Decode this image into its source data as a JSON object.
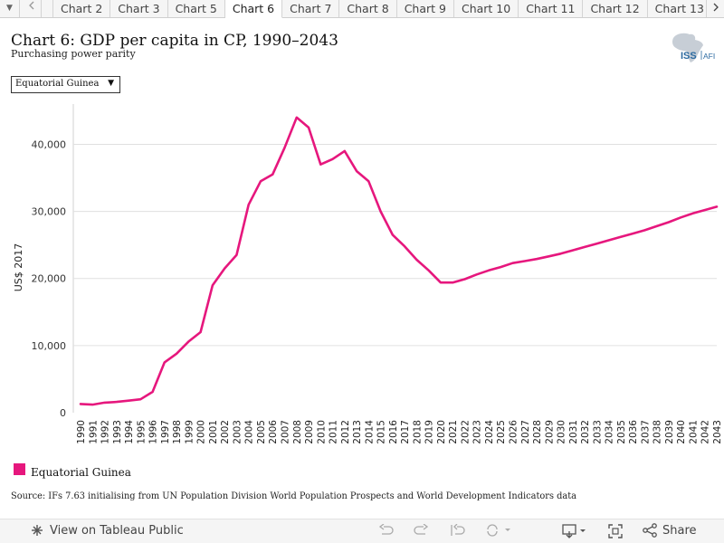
{
  "tabs": [
    "Chart 2",
    "Chart 3",
    "Chart 5",
    "Chart 6",
    "Chart 7",
    "Chart 8",
    "Chart 9",
    "Chart 10",
    "Chart 11",
    "Chart 12",
    "Chart 13"
  ],
  "active_tab": "Chart 6",
  "title": "Chart 6: GDP per capita in CP, 1990–2043",
  "subtitle": "Purchasing power parity",
  "logo": {
    "text_left": "ISS",
    "text_right": "AFI"
  },
  "country_select": {
    "value": "Equatorial Guinea"
  },
  "legend_label": "Equatorial Guinea",
  "source": "Source: IFs 7.63 initialising from UN Population Division World Population Prospects and World Development Indicators data",
  "footer": {
    "view_label": "View on Tableau Public",
    "share_label": "Share"
  },
  "colors": {
    "series": "#e6177d",
    "grid": "#e0e0e0",
    "tabbar": "#f5f5f5"
  },
  "icons": [
    "menu-arrow-icon",
    "back-arrow-icon",
    "next-arrow-icon",
    "tableau-icon",
    "undo-icon",
    "redo-icon",
    "revert-icon",
    "refresh-icon",
    "download-icon",
    "fullscreen-icon",
    "share-icon"
  ],
  "chart_data": {
    "type": "line",
    "title": "Chart 6: GDP per capita in CP, 1990–2043",
    "subtitle": "Purchasing power parity",
    "xlabel": "",
    "ylabel": "US$ 2017",
    "ylim": [
      0,
      46000
    ],
    "yticks": [
      0,
      10000,
      20000,
      30000,
      40000
    ],
    "ytick_labels": [
      "0",
      "10,000",
      "20,000",
      "30,000",
      "40,000"
    ],
    "grid": "horizontal",
    "legend_position": "bottom-left",
    "x": [
      1990,
      1991,
      1992,
      1993,
      1994,
      1995,
      1996,
      1997,
      1998,
      1999,
      2000,
      2001,
      2002,
      2003,
      2004,
      2005,
      2006,
      2007,
      2008,
      2009,
      2010,
      2011,
      2012,
      2013,
      2014,
      2015,
      2016,
      2017,
      2018,
      2019,
      2020,
      2021,
      2022,
      2023,
      2024,
      2025,
      2026,
      2027,
      2028,
      2029,
      2030,
      2031,
      2032,
      2033,
      2034,
      2035,
      2036,
      2037,
      2038,
      2039,
      2040,
      2041,
      2042,
      2043
    ],
    "series": [
      {
        "name": "Equatorial Guinea",
        "color": "#e6177d",
        "values": [
          1300,
          1200,
          1500,
          1600,
          1800,
          2000,
          3100,
          7500,
          8800,
          10600,
          12000,
          19000,
          21500,
          23500,
          31000,
          34500,
          35500,
          39500,
          44000,
          42500,
          37000,
          37800,
          39000,
          36000,
          34500,
          30000,
          26500,
          24800,
          22800,
          21200,
          19400,
          19400,
          19900,
          20600,
          21200,
          21700,
          22300,
          22600,
          22900,
          23300,
          23700,
          24200,
          24700,
          25200,
          25700,
          26200,
          26700,
          27200,
          27800,
          28400,
          29100,
          29700,
          30200,
          30700
        ]
      }
    ]
  }
}
